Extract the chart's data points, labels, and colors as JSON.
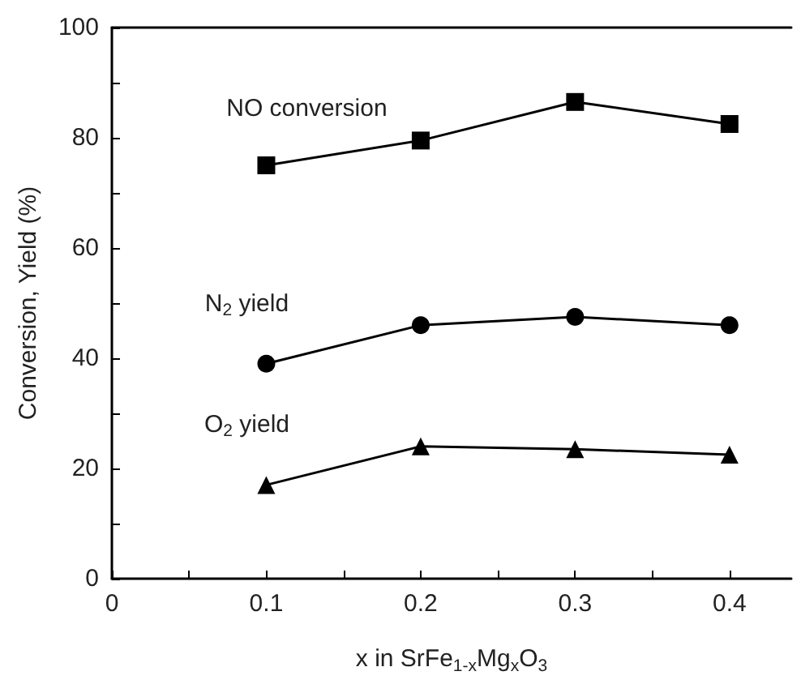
{
  "chart_data": {
    "type": "line",
    "xlabel": "x in SrFe$_{1-x}$Mg$_{x}$O$_{3}$",
    "ylabel": "Conversion, Yield (%)",
    "x": [
      0.1,
      0.2,
      0.3,
      0.4
    ],
    "series": [
      {
        "name": "NO conversion",
        "color": "#000000",
        "marker": "square",
        "values": [
          75,
          79.5,
          86.5,
          82.5
        ]
      },
      {
        "name": "N$_{2}$ yield",
        "color": "#000000",
        "marker": "circle",
        "values": [
          39,
          46,
          47.5,
          46
        ]
      },
      {
        "name": "O$_{2}$ yield",
        "color": "#000000",
        "marker": "triangle",
        "values": [
          17,
          24,
          23.5,
          22.5
        ]
      }
    ],
    "xlim": [
      0,
      0.44
    ],
    "xticks": [
      0,
      {
        "value": 0.05,
        "label": null
      },
      0.1,
      {
        "value": 0.15,
        "label": null
      },
      0.2,
      {
        "value": 0.25,
        "label": null
      },
      0.3,
      {
        "value": 0.35,
        "label": null
      },
      0.4
    ],
    "ylim": [
      0,
      100
    ],
    "yticks": [
      0,
      {
        "value": 10,
        "label": null
      },
      20,
      {
        "value": 30,
        "label": null
      },
      40,
      {
        "value": 50,
        "label": null
      },
      60,
      {
        "value": 70,
        "label": null
      },
      80,
      {
        "value": 90,
        "label": null
      },
      100
    ],
    "grid": false,
    "legend": false,
    "line_style": "solid"
  }
}
